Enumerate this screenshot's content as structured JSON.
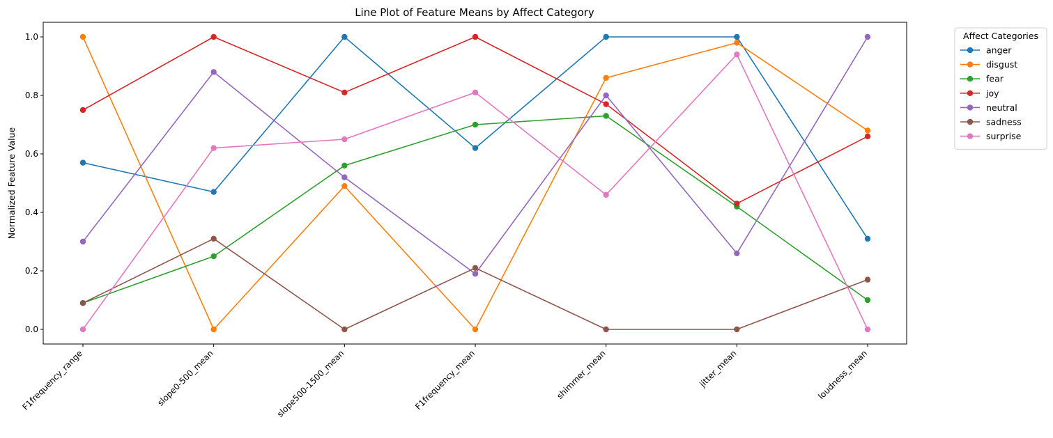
{
  "chart_data": {
    "type": "line",
    "title": "Line Plot of Feature Means by Affect Category",
    "xlabel": "",
    "ylabel": "Normalized Feature Value",
    "categories": [
      "F1frequency_range",
      "slope0-500_mean",
      "slope500-1500_mean",
      "F1frequency_mean",
      "shimmer_mean",
      "jitter_mean",
      "loudness_mean"
    ],
    "ylim": [
      -0.05,
      1.05
    ],
    "yticks": [
      "0.0",
      "0.2",
      "0.4",
      "0.6",
      "0.8",
      "1.0"
    ],
    "grid": false,
    "legend": {
      "title": "Affect Categories",
      "placement": "outside-top-right"
    },
    "series": [
      {
        "name": "anger",
        "color": "#1f77b4",
        "values": [
          0.57,
          0.47,
          1.0,
          0.62,
          1.0,
          1.0,
          0.31
        ]
      },
      {
        "name": "disgust",
        "color": "#ff7f0e",
        "values": [
          1.0,
          0.0,
          0.49,
          0.0,
          0.86,
          0.98,
          0.68
        ]
      },
      {
        "name": "fear",
        "color": "#2ca02c",
        "values": [
          0.09,
          0.25,
          0.56,
          0.7,
          0.73,
          0.42,
          0.1
        ]
      },
      {
        "name": "joy",
        "color": "#d62728",
        "values": [
          0.75,
          1.0,
          0.81,
          1.0,
          0.77,
          0.43,
          0.66
        ]
      },
      {
        "name": "neutral",
        "color": "#9467bd",
        "values": [
          0.3,
          0.88,
          0.52,
          0.19,
          0.8,
          0.26,
          1.0
        ]
      },
      {
        "name": "sadness",
        "color": "#8c564b",
        "values": [
          0.09,
          0.31,
          0.0,
          0.21,
          0.0,
          0.0,
          0.17
        ]
      },
      {
        "name": "surprise",
        "color": "#e377c2",
        "values": [
          0.0,
          0.62,
          0.65,
          0.81,
          0.46,
          0.94,
          0.0
        ]
      }
    ]
  }
}
